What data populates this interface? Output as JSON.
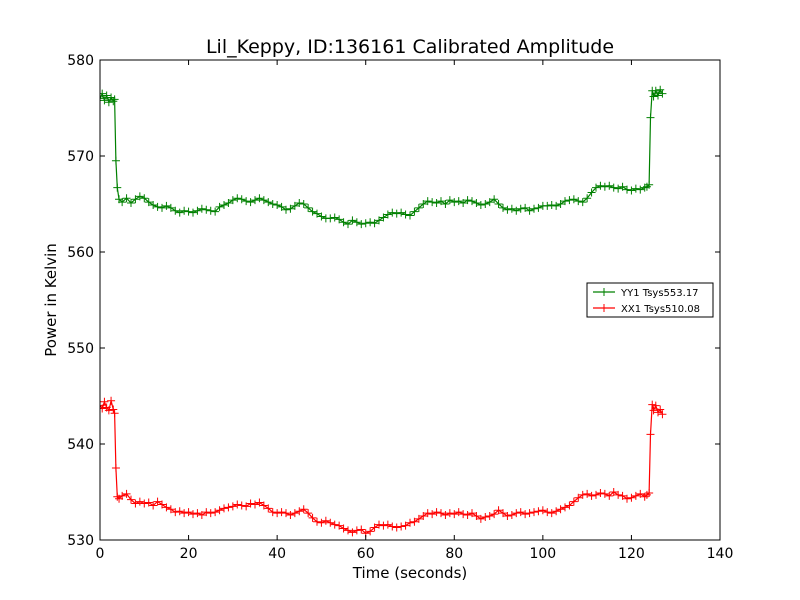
{
  "chart_data": {
    "type": "line",
    "title": "Lil_Keppy, ID:136161 Calibrated Amplitude",
    "xlabel": "Time (seconds)",
    "ylabel": "Power in Kelvin",
    "xlim": [
      0,
      140
    ],
    "ylim": [
      530,
      580
    ],
    "xticks": [
      0,
      20,
      40,
      60,
      80,
      100,
      120,
      140
    ],
    "yticks": [
      530,
      540,
      550,
      560,
      570,
      580
    ],
    "grid": false,
    "legend_position": "center-right",
    "marker": "+",
    "series": [
      {
        "name": "YY1 Tsys553.17",
        "color": "#008000",
        "points": [
          [
            0,
            576
          ],
          [
            0.5,
            576.5
          ],
          [
            1,
            575.8
          ],
          [
            1.5,
            576.3
          ],
          [
            2,
            575.6
          ],
          [
            2.5,
            576.1
          ],
          [
            3,
            575.7
          ],
          [
            3.3,
            575.9
          ],
          [
            3.6,
            569.5
          ],
          [
            3.9,
            566.7
          ],
          [
            4.3,
            565.5
          ],
          [
            5,
            565.2
          ],
          [
            6,
            565.6
          ],
          [
            7,
            565.1
          ],
          [
            8,
            565.5
          ],
          [
            9,
            565.8
          ],
          [
            10,
            565.6
          ],
          [
            11,
            565.2
          ],
          [
            12,
            564.9
          ],
          [
            13,
            564.7
          ],
          [
            14,
            564.6
          ],
          [
            15,
            564.8
          ],
          [
            16,
            564.6
          ],
          [
            17,
            564.3
          ],
          [
            18,
            564.1
          ],
          [
            19,
            564.3
          ],
          [
            20,
            564.2
          ],
          [
            21,
            564.1
          ],
          [
            22,
            564.3
          ],
          [
            23,
            564.5
          ],
          [
            24,
            564.4
          ],
          [
            25,
            564.3
          ],
          [
            26,
            564.2
          ],
          [
            27,
            564.7
          ],
          [
            28,
            564.9
          ],
          [
            29,
            565.1
          ],
          [
            30,
            565.4
          ],
          [
            31,
            565.6
          ],
          [
            32,
            565.5
          ],
          [
            33,
            565.3
          ],
          [
            34,
            565.2
          ],
          [
            35,
            565.4
          ],
          [
            36,
            565.6
          ],
          [
            37,
            565.4
          ],
          [
            38,
            565.2
          ],
          [
            39,
            565
          ],
          [
            40,
            564.9
          ],
          [
            41,
            564.7
          ],
          [
            42,
            564.4
          ],
          [
            43,
            564.5
          ],
          [
            44,
            564.8
          ],
          [
            45,
            565.1
          ],
          [
            46,
            565
          ],
          [
            47,
            564.6
          ],
          [
            48,
            564.2
          ],
          [
            49,
            564
          ],
          [
            50,
            563.7
          ],
          [
            51,
            563.5
          ],
          [
            52,
            563.5
          ],
          [
            53,
            563.6
          ],
          [
            54,
            563.4
          ],
          [
            55,
            563.1
          ],
          [
            56,
            562.9
          ],
          [
            57,
            563.3
          ],
          [
            58,
            563.1
          ],
          [
            59,
            562.9
          ],
          [
            60,
            563
          ],
          [
            61,
            563.1
          ],
          [
            62,
            563
          ],
          [
            63,
            563.3
          ],
          [
            64,
            563.6
          ],
          [
            65,
            563.9
          ],
          [
            66,
            564.1
          ],
          [
            67,
            564
          ],
          [
            68,
            564.1
          ],
          [
            69,
            563.9
          ],
          [
            70,
            563.8
          ],
          [
            71,
            564.2
          ],
          [
            72,
            564.6
          ],
          [
            73,
            565
          ],
          [
            74,
            565.3
          ],
          [
            75,
            565.2
          ],
          [
            76,
            565.1
          ],
          [
            77,
            565.3
          ],
          [
            78,
            565
          ],
          [
            79,
            565.4
          ],
          [
            80,
            565.2
          ],
          [
            81,
            565.3
          ],
          [
            82,
            565.1
          ],
          [
            83,
            565.4
          ],
          [
            84,
            565.3
          ],
          [
            85,
            565.1
          ],
          [
            86,
            564.9
          ],
          [
            87,
            565
          ],
          [
            88,
            565.2
          ],
          [
            89,
            565.5
          ],
          [
            90,
            565
          ],
          [
            91,
            564.6
          ],
          [
            92,
            564.4
          ],
          [
            93,
            564.5
          ],
          [
            94,
            564.3
          ],
          [
            95,
            564.5
          ],
          [
            96,
            564.6
          ],
          [
            97,
            564.3
          ],
          [
            98,
            564.5
          ],
          [
            99,
            564.6
          ],
          [
            100,
            564.8
          ],
          [
            101,
            564.8
          ],
          [
            102,
            564.9
          ],
          [
            103,
            564.8
          ],
          [
            104,
            565
          ],
          [
            105,
            565.3
          ],
          [
            106,
            565.4
          ],
          [
            107,
            565.5
          ],
          [
            108,
            565.3
          ],
          [
            109,
            565.2
          ],
          [
            110,
            565.6
          ],
          [
            111,
            566.2
          ],
          [
            112,
            566.7
          ],
          [
            113,
            566.9
          ],
          [
            114,
            566.8
          ],
          [
            115,
            566.9
          ],
          [
            116,
            566.7
          ],
          [
            117,
            566.6
          ],
          [
            118,
            566.8
          ],
          [
            119,
            566.5
          ],
          [
            120,
            566.4
          ],
          [
            121,
            566.6
          ],
          [
            122,
            566.5
          ],
          [
            123,
            566.7
          ],
          [
            123.5,
            566.8
          ],
          [
            124,
            567
          ],
          [
            124.3,
            574
          ],
          [
            124.7,
            576.8
          ],
          [
            125,
            576.2
          ],
          [
            125.5,
            576.8
          ],
          [
            126,
            576.3
          ],
          [
            126.5,
            576.9
          ],
          [
            127,
            576.5
          ]
        ]
      },
      {
        "name": "XX1 Tsys510.08",
        "color": "#ff0000",
        "points": [
          [
            0,
            544
          ],
          [
            0.5,
            543.7
          ],
          [
            1,
            544.4
          ],
          [
            1.5,
            543.8
          ],
          [
            2,
            543.5
          ],
          [
            2.5,
            544.5
          ],
          [
            3,
            543.6
          ],
          [
            3.3,
            543.2
          ],
          [
            3.6,
            537.5
          ],
          [
            3.9,
            534.5
          ],
          [
            4.3,
            534.3
          ],
          [
            5,
            534.6
          ],
          [
            6,
            534.8
          ],
          [
            7,
            534.2
          ],
          [
            8,
            533.8
          ],
          [
            9,
            534
          ],
          [
            10,
            533.8
          ],
          [
            11,
            533.9
          ],
          [
            12,
            533.6
          ],
          [
            13,
            534
          ],
          [
            14,
            533.7
          ],
          [
            15,
            533.4
          ],
          [
            16,
            533.2
          ],
          [
            17,
            532.9
          ],
          [
            18,
            533
          ],
          [
            19,
            532.8
          ],
          [
            20,
            532.9
          ],
          [
            21,
            532.7
          ],
          [
            22,
            532.8
          ],
          [
            23,
            532.6
          ],
          [
            24,
            532.9
          ],
          [
            25,
            532.8
          ],
          [
            26,
            532.9
          ],
          [
            27,
            533.1
          ],
          [
            28,
            533.3
          ],
          [
            29,
            533.4
          ],
          [
            30,
            533.5
          ],
          [
            31,
            533.7
          ],
          [
            32,
            533.6
          ],
          [
            33,
            533.5
          ],
          [
            34,
            533.8
          ],
          [
            35,
            533.7
          ],
          [
            36,
            533.9
          ],
          [
            37,
            533.6
          ],
          [
            38,
            533.3
          ],
          [
            39,
            532.9
          ],
          [
            40,
            532.8
          ],
          [
            41,
            532.9
          ],
          [
            42,
            532.8
          ],
          [
            43,
            532.6
          ],
          [
            44,
            532.8
          ],
          [
            45,
            533
          ],
          [
            46,
            533.2
          ],
          [
            47,
            532.8
          ],
          [
            48,
            532.3
          ],
          [
            49,
            531.9
          ],
          [
            50,
            531.8
          ],
          [
            51,
            532
          ],
          [
            52,
            531.8
          ],
          [
            53,
            531.6
          ],
          [
            54,
            531.5
          ],
          [
            55,
            531.2
          ],
          [
            56,
            531
          ],
          [
            57,
            530.8
          ],
          [
            58,
            531
          ],
          [
            59,
            531.1
          ],
          [
            60,
            530.7
          ],
          [
            61,
            530.9
          ],
          [
            62,
            531.3
          ],
          [
            63,
            531.6
          ],
          [
            64,
            531.5
          ],
          [
            65,
            531.6
          ],
          [
            66,
            531.4
          ],
          [
            67,
            531.3
          ],
          [
            68,
            531.4
          ],
          [
            69,
            531.5
          ],
          [
            70,
            531.8
          ],
          [
            71,
            531.9
          ],
          [
            72,
            532.2
          ],
          [
            73,
            532.5
          ],
          [
            74,
            532.8
          ],
          [
            75,
            532.7
          ],
          [
            76,
            532.9
          ],
          [
            77,
            532.8
          ],
          [
            78,
            532.6
          ],
          [
            79,
            532.8
          ],
          [
            80,
            532.7
          ],
          [
            81,
            532.9
          ],
          [
            82,
            532.7
          ],
          [
            83,
            532.6
          ],
          [
            84,
            532.8
          ],
          [
            85,
            532.5
          ],
          [
            86,
            532.2
          ],
          [
            87,
            532.4
          ],
          [
            88,
            532.5
          ],
          [
            89,
            532.7
          ],
          [
            90,
            533.1
          ],
          [
            91,
            532.8
          ],
          [
            92,
            532.5
          ],
          [
            93,
            532.6
          ],
          [
            94,
            532.8
          ],
          [
            95,
            532.9
          ],
          [
            96,
            532.7
          ],
          [
            97,
            532.8
          ],
          [
            98,
            532.9
          ],
          [
            99,
            533
          ],
          [
            100,
            533.1
          ],
          [
            101,
            532.9
          ],
          [
            102,
            532.8
          ],
          [
            103,
            533
          ],
          [
            104,
            533.2
          ],
          [
            105,
            533.4
          ],
          [
            106,
            533.6
          ],
          [
            107,
            534
          ],
          [
            108,
            534.4
          ],
          [
            109,
            534.7
          ],
          [
            110,
            534.8
          ],
          [
            111,
            534.6
          ],
          [
            112,
            534.7
          ],
          [
            113,
            534.9
          ],
          [
            114,
            534.8
          ],
          [
            115,
            534.6
          ],
          [
            116,
            535
          ],
          [
            117,
            534.7
          ],
          [
            118,
            534.6
          ],
          [
            119,
            534.3
          ],
          [
            120,
            534.4
          ],
          [
            121,
            534.6
          ],
          [
            122,
            534.8
          ],
          [
            123,
            534.5
          ],
          [
            123.5,
            534.7
          ],
          [
            124,
            534.9
          ],
          [
            124.3,
            541
          ],
          [
            124.7,
            544.1
          ],
          [
            125,
            543.5
          ],
          [
            125.5,
            544
          ],
          [
            126,
            543.3
          ],
          [
            126.5,
            543.6
          ],
          [
            127,
            543.1
          ]
        ]
      }
    ]
  }
}
